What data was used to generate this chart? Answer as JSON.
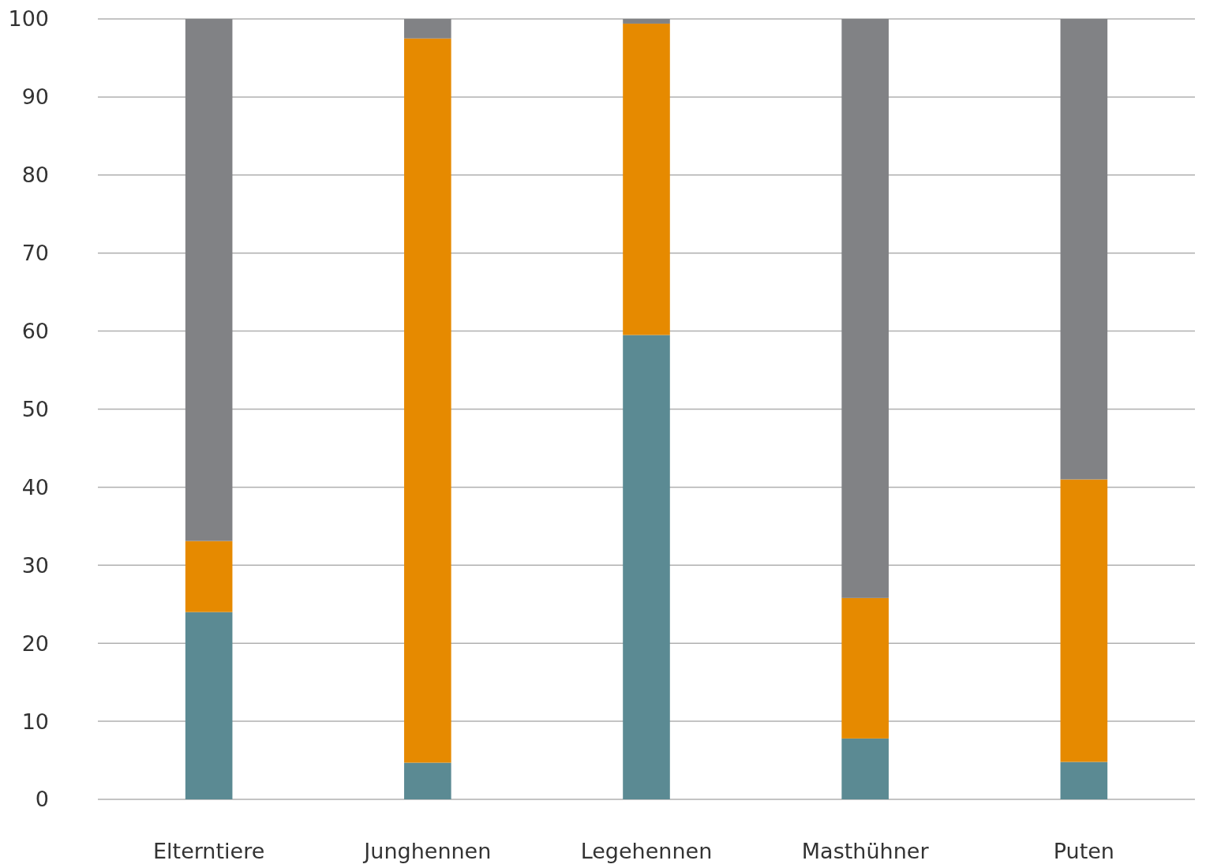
{
  "chart_data": {
    "type": "bar",
    "stacked": true,
    "categories": [
      "Elterntiere",
      "Junghennen",
      "Legehennen",
      "Masthühner",
      "Puten"
    ],
    "series": [
      {
        "color": "#5b8a93",
        "values": [
          24,
          4.7,
          59.5,
          7.8,
          4.8
        ]
      },
      {
        "color": "#e68a00",
        "values": [
          9.1,
          92.8,
          39.9,
          18,
          36.2
        ]
      },
      {
        "color": "#818285",
        "values": [
          66.9,
          2.5,
          0.6,
          74.2,
          59
        ]
      }
    ],
    "ylim": [
      0,
      100
    ],
    "yticks": [
      0,
      10,
      20,
      30,
      40,
      50,
      60,
      70,
      80,
      90,
      100
    ],
    "grid": "y"
  }
}
